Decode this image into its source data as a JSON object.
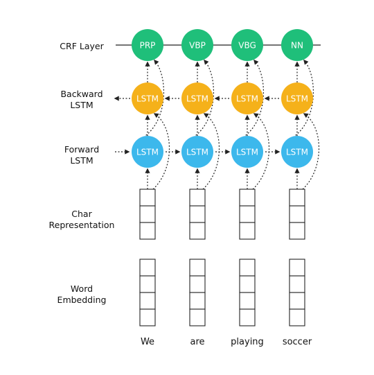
{
  "row_labels": {
    "crf": [
      "CRF Layer"
    ],
    "backward": [
      "Backward",
      "LSTM"
    ],
    "forward": [
      "Forward",
      "LSTM"
    ],
    "char": [
      "Char",
      "Representation"
    ],
    "word": [
      "Word",
      "Embedding"
    ]
  },
  "tags": [
    "PRP",
    "VBP",
    "VBG",
    "NN"
  ],
  "lstm_label": "LSTM",
  "words": [
    "We",
    "are",
    "playing",
    "soccer"
  ],
  "colors": {
    "crf": "#1fbf7a",
    "backward": "#f5b11a",
    "forward": "#3cb8ec",
    "stroke": "#222222"
  }
}
